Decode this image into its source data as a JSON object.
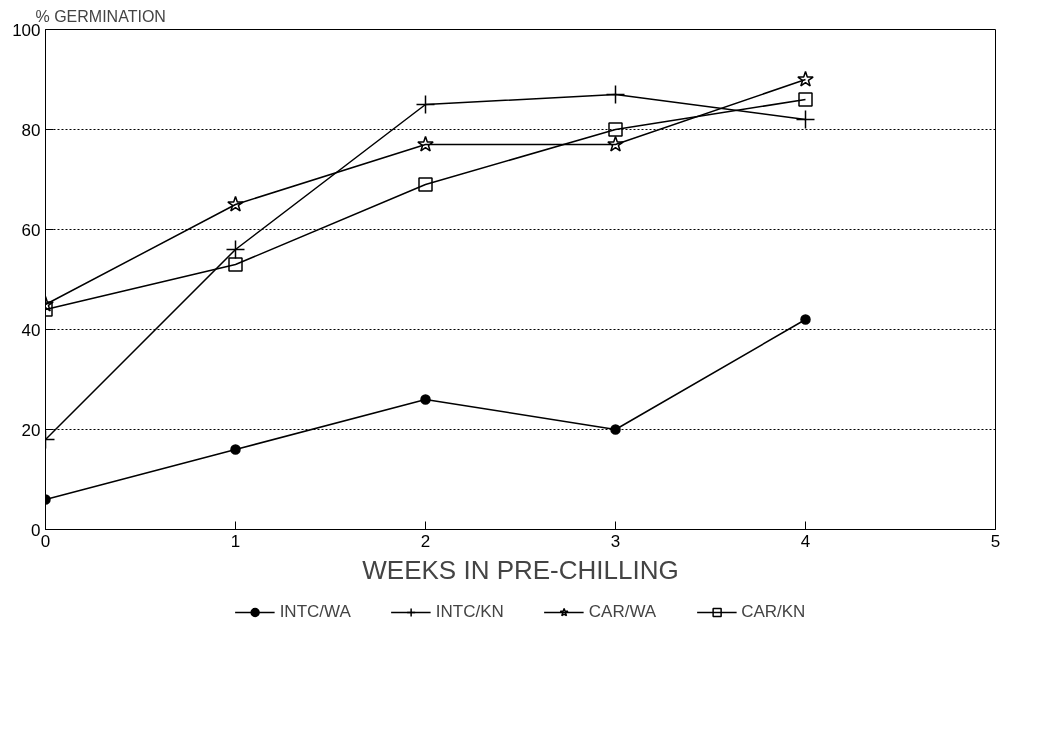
{
  "chart_data": {
    "type": "line",
    "ylabel": "% GERMINATION",
    "xlabel": "WEEKS IN PRE-CHILLING",
    "x": [
      0,
      1,
      2,
      3,
      4
    ],
    "xlim": [
      0,
      5
    ],
    "xticks": [
      0,
      1,
      2,
      3,
      4,
      5
    ],
    "ylim": [
      0,
      100
    ],
    "yticks": [
      0,
      20,
      40,
      60,
      80,
      100
    ],
    "grid": "y",
    "legend": "bottom",
    "line_style": "solid",
    "series": [
      {
        "name": "INTC/WA",
        "color": "#000000",
        "marker": "circle",
        "values": [
          6,
          16,
          26,
          20,
          42
        ]
      },
      {
        "name": "INTC/KN",
        "color": "#000000",
        "marker": "cross",
        "values": [
          18,
          56,
          85,
          87,
          82
        ]
      },
      {
        "name": "CAR/WA",
        "color": "#000000",
        "marker": "star",
        "values": [
          45,
          65,
          77,
          77,
          90
        ]
      },
      {
        "name": "CAR/KN",
        "color": "#000000",
        "marker": "square",
        "values": [
          44,
          53,
          69,
          80,
          86
        ]
      }
    ]
  }
}
